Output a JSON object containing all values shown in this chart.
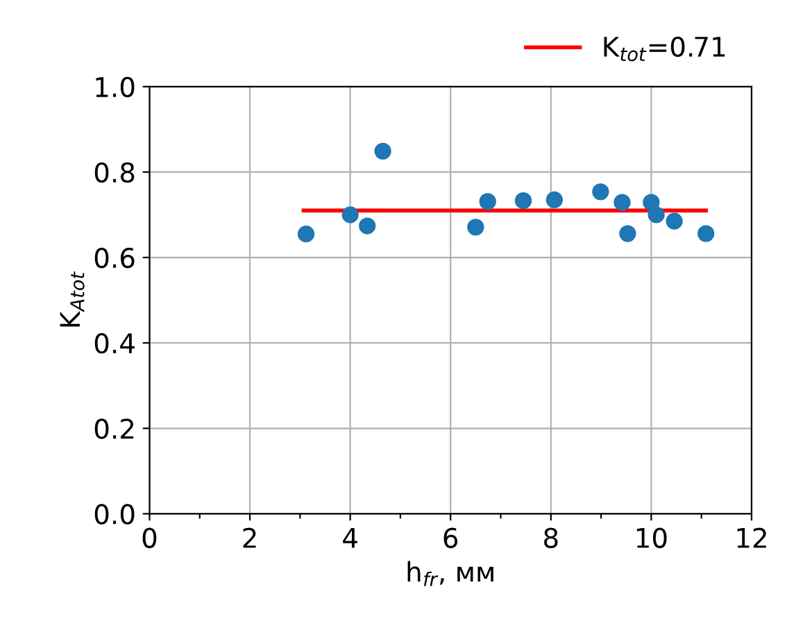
{
  "chart_data": {
    "type": "scatter",
    "xlabel": "h$_{fr}$, мм",
    "ylabel": "K$_{Atot}$",
    "xlim": [
      0,
      12
    ],
    "ylim": [
      0,
      1
    ],
    "xticks": [
      0,
      {
        "value": 1,
        "label": null
      },
      2,
      {
        "value": 3,
        "label": null
      },
      4,
      {
        "value": 5,
        "label": null
      },
      6,
      {
        "value": 7,
        "label": null
      },
      8,
      {
        "value": 9,
        "label": null
      },
      10,
      {
        "value": 11,
        "label": null
      },
      12
    ],
    "yticks": [
      {
        "value": 0,
        "label": "0.0"
      },
      0.2,
      0.4,
      0.6,
      0.8,
      {
        "value": 1,
        "label": "1.0"
      }
    ],
    "grid": true,
    "legend": "top right",
    "series": [
      {
        "color": "#1f77b4",
        "marker": "circle",
        "x": [
          3.12,
          4.0,
          4.34,
          4.65,
          6.5,
          6.74,
          7.45,
          8.07,
          8.99,
          9.42,
          9.53,
          10.0,
          10.1,
          10.46,
          11.09
        ],
        "values": [
          0.655,
          0.7,
          0.674,
          0.849,
          0.671,
          0.731,
          0.733,
          0.735,
          0.754,
          0.729,
          0.656,
          0.729,
          0.7,
          0.685,
          0.656
        ]
      },
      {
        "type": "line",
        "name": "K$_{tot}$=0.71",
        "color": "#ff0000",
        "x": [
          3.07,
          11.09
        ],
        "values": [
          0.71,
          0.71
        ]
      }
    ]
  }
}
